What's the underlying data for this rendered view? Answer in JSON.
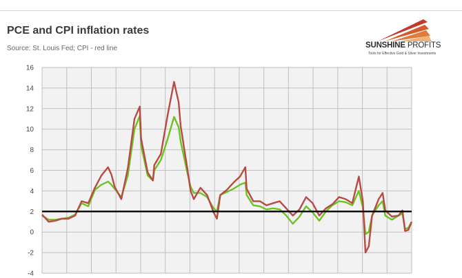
{
  "header": {
    "title": "PCE and CPI inflation rates",
    "subtitle": "Source: St. Louis Fed; CPI - red line"
  },
  "logo": {
    "name_bold": "SUNSHINE",
    "name_light": " PROFITS",
    "tagline": "Tools for Effective Gold & Silver Investments"
  },
  "colors": {
    "cpi": "#b84a45",
    "pce": "#6cc21f",
    "reference_line": "#000000",
    "grid": "#bfbfbf",
    "plot_bg": "#f2f2f2"
  },
  "chart_data": {
    "type": "line",
    "x_unit": "year (approx., axis unlabeled)",
    "xlim": [
      1960,
      2016
    ],
    "ylim": [
      -4,
      16
    ],
    "yticks": [
      16,
      14,
      12,
      10,
      8,
      6,
      4,
      2,
      0,
      -2,
      -4
    ],
    "grid": true,
    "reference_line": {
      "y": 2
    },
    "series": [
      {
        "name": "CPI",
        "color": "#b84a45",
        "points": [
          [
            1960,
            1.7
          ],
          [
            1961,
            1.0
          ],
          [
            1962,
            1.1
          ],
          [
            1963,
            1.3
          ],
          [
            1964,
            1.3
          ],
          [
            1965,
            1.6
          ],
          [
            1966,
            3.0
          ],
          [
            1967,
            2.8
          ],
          [
            1968,
            4.3
          ],
          [
            1969,
            5.5
          ],
          [
            1970,
            6.3
          ],
          [
            1970.5,
            5.6
          ],
          [
            1971,
            4.4
          ],
          [
            1972,
            3.2
          ],
          [
            1973,
            6.2
          ],
          [
            1974,
            11.0
          ],
          [
            1974.8,
            12.2
          ],
          [
            1975,
            9.1
          ],
          [
            1976,
            5.8
          ],
          [
            1976.8,
            5.0
          ],
          [
            1977,
            6.5
          ],
          [
            1978,
            7.6
          ],
          [
            1979,
            11.3
          ],
          [
            1980,
            14.6
          ],
          [
            1980.7,
            12.6
          ],
          [
            1981,
            10.3
          ],
          [
            1982,
            6.2
          ],
          [
            1982.5,
            4.0
          ],
          [
            1983,
            3.2
          ],
          [
            1984,
            4.3
          ],
          [
            1985,
            3.6
          ],
          [
            1986,
            1.9
          ],
          [
            1986.5,
            1.3
          ],
          [
            1987,
            3.6
          ],
          [
            1988,
            4.1
          ],
          [
            1989,
            4.8
          ],
          [
            1990,
            5.4
          ],
          [
            1990.8,
            6.3
          ],
          [
            1991,
            4.2
          ],
          [
            1992,
            3.0
          ],
          [
            1993,
            3.0
          ],
          [
            1994,
            2.6
          ],
          [
            1995,
            2.8
          ],
          [
            1996,
            3.0
          ],
          [
            1997,
            2.3
          ],
          [
            1998,
            1.6
          ],
          [
            1999,
            2.2
          ],
          [
            2000,
            3.4
          ],
          [
            2001,
            2.8
          ],
          [
            2002,
            1.6
          ],
          [
            2003,
            2.3
          ],
          [
            2004,
            2.7
          ],
          [
            2005,
            3.4
          ],
          [
            2006,
            3.2
          ],
          [
            2007,
            2.8
          ],
          [
            2008,
            5.4
          ],
          [
            2008.6,
            3.0
          ],
          [
            2009,
            -2.0
          ],
          [
            2009.5,
            -1.4
          ],
          [
            2010,
            1.6
          ],
          [
            2011,
            3.2
          ],
          [
            2011.6,
            3.8
          ],
          [
            2012,
            2.1
          ],
          [
            2013,
            1.5
          ],
          [
            2014,
            1.6
          ],
          [
            2014.6,
            2.1
          ],
          [
            2015,
            0.1
          ],
          [
            2015.5,
            0.2
          ],
          [
            2016,
            1.0
          ]
        ]
      },
      {
        "name": "PCE",
        "color": "#6cc21f",
        "points": [
          [
            1960,
            1.6
          ],
          [
            1961,
            1.2
          ],
          [
            1962,
            1.2
          ],
          [
            1963,
            1.3
          ],
          [
            1964,
            1.4
          ],
          [
            1965,
            1.7
          ],
          [
            1966,
            2.8
          ],
          [
            1967,
            2.5
          ],
          [
            1968,
            4.1
          ],
          [
            1969,
            4.6
          ],
          [
            1970,
            4.9
          ],
          [
            1970.5,
            4.6
          ],
          [
            1971,
            4.2
          ],
          [
            1972,
            3.4
          ],
          [
            1973,
            5.5
          ],
          [
            1974,
            10.0
          ],
          [
            1974.8,
            11.3
          ],
          [
            1975,
            8.4
          ],
          [
            1976,
            5.5
          ],
          [
            1976.8,
            5.0
          ],
          [
            1977,
            6.0
          ],
          [
            1978,
            7.0
          ],
          [
            1979,
            9.0
          ],
          [
            1980,
            11.2
          ],
          [
            1980.7,
            10.2
          ],
          [
            1981,
            8.8
          ],
          [
            1982,
            5.8
          ],
          [
            1982.5,
            4.4
          ],
          [
            1983,
            3.8
          ],
          [
            1984,
            3.8
          ],
          [
            1985,
            3.4
          ],
          [
            1986,
            2.3
          ],
          [
            1986.5,
            2.0
          ],
          [
            1987,
            3.6
          ],
          [
            1988,
            3.9
          ],
          [
            1989,
            4.2
          ],
          [
            1990,
            4.6
          ],
          [
            1990.8,
            4.8
          ],
          [
            1991,
            3.6
          ],
          [
            1992,
            2.6
          ],
          [
            1993,
            2.5
          ],
          [
            1994,
            2.2
          ],
          [
            1995,
            2.3
          ],
          [
            1996,
            2.2
          ],
          [
            1997,
            1.6
          ],
          [
            1998,
            0.8
          ],
          [
            1999,
            1.5
          ],
          [
            2000,
            2.5
          ],
          [
            2001,
            1.9
          ],
          [
            2002,
            1.1
          ],
          [
            2003,
            2.0
          ],
          [
            2004,
            2.6
          ],
          [
            2005,
            3.0
          ],
          [
            2006,
            2.9
          ],
          [
            2007,
            2.6
          ],
          [
            2008,
            4.0
          ],
          [
            2008.6,
            2.4
          ],
          [
            2009,
            -0.2
          ],
          [
            2009.5,
            0.0
          ],
          [
            2010,
            1.6
          ],
          [
            2011,
            2.6
          ],
          [
            2011.6,
            3.0
          ],
          [
            2012,
            1.6
          ],
          [
            2013,
            1.2
          ],
          [
            2014,
            1.6
          ],
          [
            2014.6,
            1.8
          ],
          [
            2015,
            0.3
          ],
          [
            2015.5,
            0.4
          ],
          [
            2016,
            1.0
          ]
        ]
      }
    ]
  }
}
